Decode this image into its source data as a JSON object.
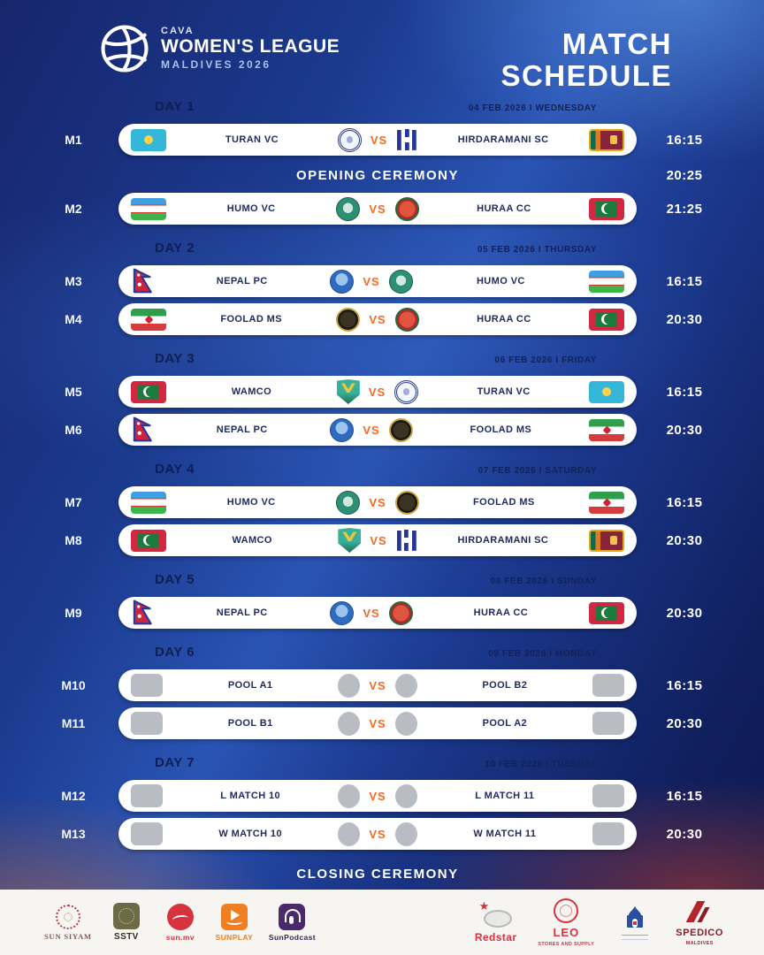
{
  "header": {
    "logo": {
      "org": "CAVA",
      "title": "WOMEN'S LEAGUE",
      "subtitle": "MALDIVES 2026"
    },
    "title_line1": "MATCH",
    "title_line2": "SCHEDULE"
  },
  "vs_label": "VS",
  "colors": {
    "accent_orange": "#f26a21",
    "pill_text_navy": "#1c2a5e",
    "background_blue": "#1b3a8e",
    "time_text": "#ffffff"
  },
  "schedule": {
    "days": [
      {
        "label": "DAY 1",
        "date": "04 FEB 2026 I WEDNESDAY",
        "events": [
          {
            "type": "match",
            "id": "M1",
            "time": "16:15",
            "home": {
              "name": "TURAN VC",
              "flag": "kz",
              "logo": "turan"
            },
            "away": {
              "name": "HIRDARAMANI SC",
              "flag": "lk",
              "logo": "hirdaramani"
            }
          },
          {
            "type": "ceremony",
            "label": "OPENING CEREMONY",
            "time": "20:25"
          },
          {
            "type": "match",
            "id": "M2",
            "time": "21:25",
            "home": {
              "name": "HUMO VC",
              "flag": "uz",
              "logo": "humo"
            },
            "away": {
              "name": "HURAA CC",
              "flag": "mv",
              "logo": "huraa"
            }
          }
        ]
      },
      {
        "label": "DAY 2",
        "date": "05 FEB 2026 I THURSDAY",
        "events": [
          {
            "type": "match",
            "id": "M3",
            "time": "16:15",
            "home": {
              "name": "NEPAL PC",
              "flag": "np",
              "logo": "nepalpc"
            },
            "away": {
              "name": "HUMO VC",
              "flag": "uz",
              "logo": "humo"
            }
          },
          {
            "type": "match",
            "id": "M4",
            "time": "20:30",
            "home": {
              "name": "FOOLAD MS",
              "flag": "ir",
              "logo": "foolad"
            },
            "away": {
              "name": "HURAA CC",
              "flag": "mv",
              "logo": "huraa"
            }
          }
        ]
      },
      {
        "label": "DAY 3",
        "date": "06 FEB 2026 I FRIDAY",
        "events": [
          {
            "type": "match",
            "id": "M5",
            "time": "16:15",
            "home": {
              "name": "WAMCO",
              "flag": "mv",
              "logo": "wamco"
            },
            "away": {
              "name": "TURAN VC",
              "flag": "kz",
              "logo": "turan"
            }
          },
          {
            "type": "match",
            "id": "M6",
            "time": "20:30",
            "home": {
              "name": "NEPAL PC",
              "flag": "np",
              "logo": "nepalpc"
            },
            "away": {
              "name": "FOOLAD MS",
              "flag": "ir",
              "logo": "foolad"
            }
          }
        ]
      },
      {
        "label": "DAY 4",
        "date": "07 FEB 2026 I SATURDAY",
        "events": [
          {
            "type": "match",
            "id": "M7",
            "time": "16:15",
            "home": {
              "name": "HUMO VC",
              "flag": "uz",
              "logo": "humo"
            },
            "away": {
              "name": "FOOLAD MS",
              "flag": "ir",
              "logo": "foolad"
            }
          },
          {
            "type": "match",
            "id": "M8",
            "time": "20:30",
            "home": {
              "name": "WAMCO",
              "flag": "mv",
              "logo": "wamco"
            },
            "away": {
              "name": "HIRDARAMANI SC",
              "flag": "lk",
              "logo": "hirdaramani"
            }
          }
        ]
      },
      {
        "label": "DAY 5",
        "date": "08 FEB 2026 I SUNDAY",
        "events": [
          {
            "type": "match",
            "id": "M9",
            "time": "20:30",
            "home": {
              "name": "NEPAL PC",
              "flag": "np",
              "logo": "nepalpc"
            },
            "away": {
              "name": "HURAA CC",
              "flag": "mv",
              "logo": "huraa"
            }
          }
        ]
      },
      {
        "label": "DAY 6",
        "date": "09 FEB 2026 I MONDAY",
        "events": [
          {
            "type": "match",
            "id": "M10",
            "time": "16:15",
            "home": {
              "name": "POOL A1",
              "flag": "gray",
              "logo": "gray"
            },
            "away": {
              "name": "POOL B2",
              "flag": "gray",
              "logo": "gray"
            }
          },
          {
            "type": "match",
            "id": "M11",
            "time": "20:30",
            "home": {
              "name": "POOL B1",
              "flag": "gray",
              "logo": "gray"
            },
            "away": {
              "name": "POOL A2",
              "flag": "gray",
              "logo": "gray"
            }
          }
        ]
      },
      {
        "label": "DAY 7",
        "date": "10 FEB 2026 I TUESDAY",
        "events": [
          {
            "type": "match",
            "id": "M12",
            "time": "16:15",
            "home": {
              "name": "L MATCH 10",
              "flag": "gray",
              "logo": "gray"
            },
            "away": {
              "name": "L MATCH 11",
              "flag": "gray",
              "logo": "gray"
            }
          },
          {
            "type": "match",
            "id": "M13",
            "time": "20:30",
            "home": {
              "name": "W MATCH 10",
              "flag": "gray",
              "logo": "gray"
            },
            "away": {
              "name": "W MATCH 11",
              "flag": "gray",
              "logo": "gray"
            }
          }
        ]
      }
    ],
    "closing": {
      "label": "CLOSING CEREMONY"
    }
  },
  "footer": {
    "left": [
      {
        "id": "sunsiyam",
        "label": "SUN SIYAM"
      },
      {
        "id": "sstv",
        "label": "SSTV"
      },
      {
        "id": "sunmv",
        "label": "sun.mv"
      },
      {
        "id": "sunplay",
        "label": "SUNPLAY"
      },
      {
        "id": "sunpodcast",
        "label": "SunPodcast"
      }
    ],
    "right": [
      {
        "id": "redstar",
        "label": "Redstar"
      },
      {
        "id": "leo",
        "label": "LEO",
        "sub": "STORES AND SUPPLY"
      },
      {
        "id": "heritage",
        "label": ""
      },
      {
        "id": "spedico",
        "label": "SPEDICO",
        "sub": "MALDIVES"
      }
    ]
  }
}
